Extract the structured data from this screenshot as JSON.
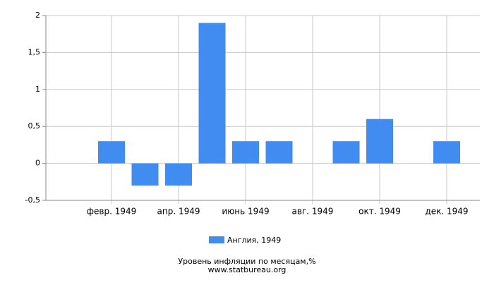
{
  "chart_data": {
    "type": "bar",
    "title": "Уровень инфляции по месяцам,%",
    "source": "www.statbureau.org",
    "categories": [
      null,
      "февр. 1949",
      null,
      "апр. 1949",
      null,
      "июнь 1949",
      null,
      "авг. 1949",
      null,
      "окт. 1949",
      null,
      "дек. 1949"
    ],
    "series": [
      {
        "name": "Англия, 1949",
        "color": "#418cf0",
        "values": [
          0,
          0.3,
          -0.3,
          -0.3,
          1.9,
          0.3,
          0.3,
          0,
          0.3,
          0.6,
          0,
          0.3
        ]
      }
    ],
    "ylim": [
      -0.5,
      2
    ],
    "yticks": [
      {
        "value": -0.5,
        "label": "-0,5"
      },
      0,
      {
        "value": 0.5,
        "label": "0,5"
      },
      1,
      {
        "value": 1.5,
        "label": "1,5"
      },
      2
    ],
    "grid": true
  }
}
